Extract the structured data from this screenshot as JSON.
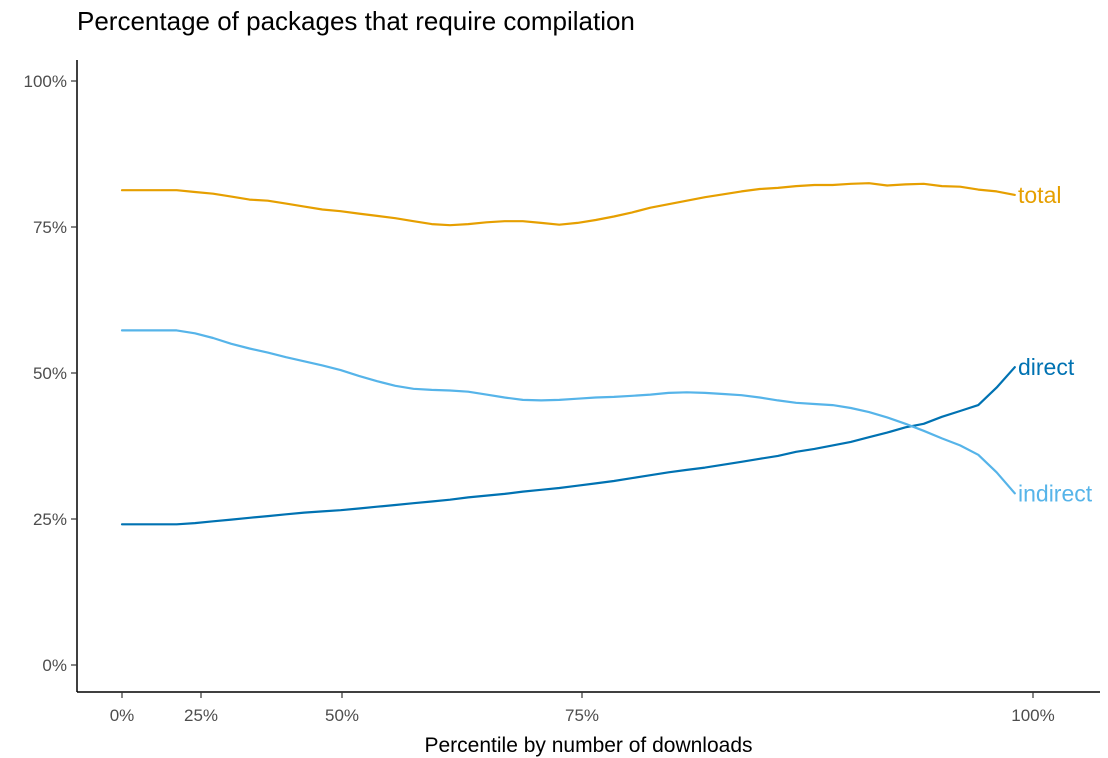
{
  "chart_data": {
    "type": "line",
    "title": "Percentage of packages that require compilation",
    "xlabel": "Percentile by number of downloads",
    "ylabel": "",
    "x_ticks": [
      "0%",
      "25%",
      "50%",
      "75%",
      "100%"
    ],
    "y_ticks": [
      "0%",
      "25%",
      "50%",
      "75%",
      "100%"
    ],
    "y_tick_values": [
      0,
      25,
      50,
      75,
      100
    ],
    "ylim": [
      0,
      100
    ],
    "xlim": [
      0,
      100
    ],
    "grid": false,
    "legend": "direct labels at line ends",
    "x": [
      0,
      2,
      4,
      6,
      8,
      10,
      12,
      14,
      16,
      18,
      20,
      22,
      24,
      26,
      28,
      30,
      32,
      34,
      36,
      38,
      40,
      42,
      44,
      46,
      48,
      50,
      52,
      54,
      56,
      58,
      60,
      62,
      64,
      66,
      68,
      70,
      72,
      74,
      76,
      78,
      80,
      82,
      84,
      86,
      88,
      90,
      92,
      94,
      96,
      98
    ],
    "series": [
      {
        "name": "total",
        "color": "#E69F00",
        "values": [
          81.3,
          81.3,
          81.3,
          81.3,
          81.0,
          80.7,
          80.2,
          79.7,
          79.5,
          79.0,
          78.5,
          78.0,
          77.7,
          77.3,
          76.9,
          76.5,
          76.0,
          75.5,
          75.3,
          75.5,
          75.8,
          76.0,
          76.0,
          75.7,
          75.4,
          75.7,
          76.2,
          76.8,
          77.5,
          78.3,
          78.9,
          79.5,
          80.1,
          80.6,
          81.1,
          81.5,
          81.7,
          82.0,
          82.2,
          82.2,
          82.4,
          82.5,
          82.1,
          82.3,
          82.4,
          82.0,
          81.9,
          81.4,
          81.1,
          80.5
        ]
      },
      {
        "name": "direct",
        "color": "#0072B2",
        "values": [
          24.1,
          24.1,
          24.1,
          24.1,
          24.3,
          24.6,
          24.9,
          25.2,
          25.5,
          25.8,
          26.1,
          26.3,
          26.5,
          26.8,
          27.1,
          27.4,
          27.7,
          28.0,
          28.3,
          28.7,
          29.0,
          29.3,
          29.7,
          30.0,
          30.3,
          30.7,
          31.1,
          31.5,
          32.0,
          32.5,
          33.0,
          33.4,
          33.8,
          34.3,
          34.8,
          35.3,
          35.8,
          36.5,
          37.0,
          37.6,
          38.2,
          39.0,
          39.8,
          40.7,
          41.3,
          42.5,
          43.5,
          44.5,
          47.5,
          51.0
        ]
      },
      {
        "name": "indirect",
        "color": "#56B4E9",
        "values": [
          57.3,
          57.3,
          57.3,
          57.3,
          56.8,
          56.0,
          55.0,
          54.2,
          53.5,
          52.7,
          52.0,
          51.3,
          50.5,
          49.5,
          48.6,
          47.8,
          47.3,
          47.1,
          47.0,
          46.8,
          46.3,
          45.8,
          45.4,
          45.3,
          45.4,
          45.6,
          45.8,
          45.9,
          46.1,
          46.3,
          46.6,
          46.7,
          46.6,
          46.4,
          46.2,
          45.8,
          45.3,
          44.9,
          44.7,
          44.5,
          44.0,
          43.3,
          42.4,
          41.3,
          40.1,
          38.8,
          37.6,
          36.0,
          33.0,
          29.4
        ]
      }
    ]
  }
}
